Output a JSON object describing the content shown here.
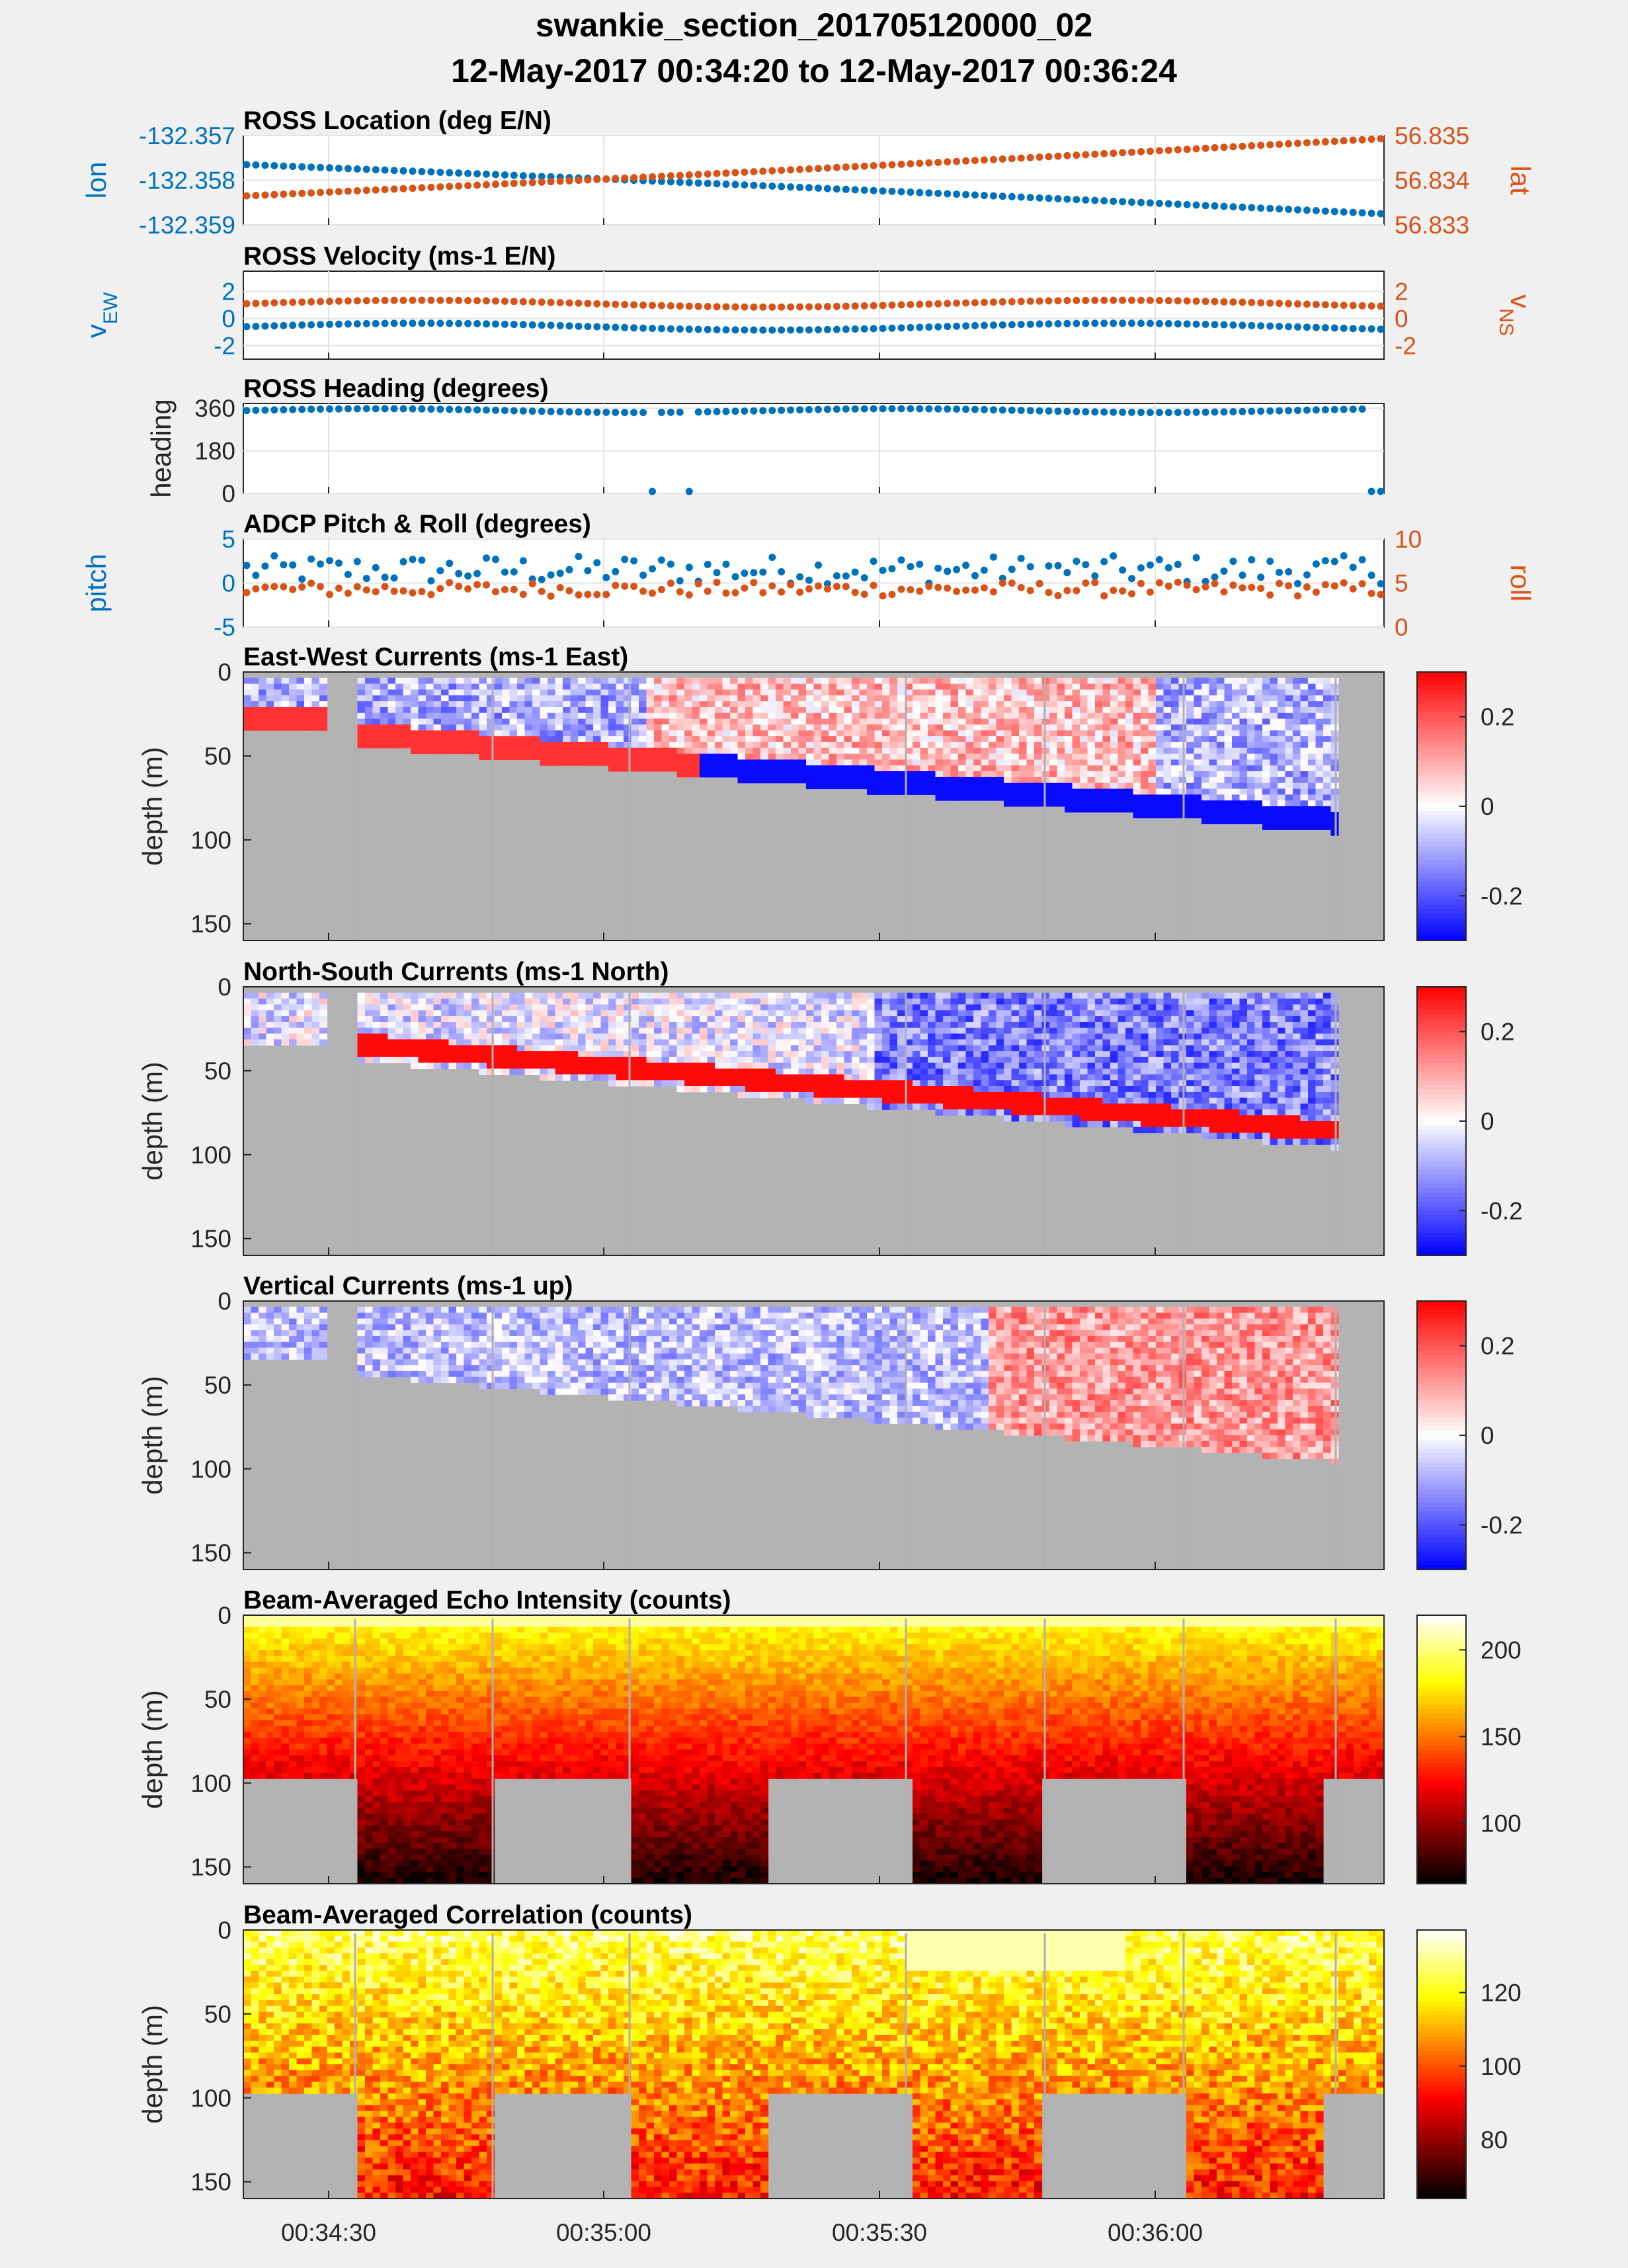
{
  "figure": {
    "title_line1": "swankie_section_201705120000_02",
    "title_line2": "12-May-2017 00:34:20 to 12-May-2017 00:36:24"
  },
  "colors": {
    "left_axis": "#0072bd",
    "right_axis": "#d95319",
    "background": "#f0f0f0",
    "bottom_fill": "#b3b3b3"
  },
  "chart_data": [
    {
      "type": "scatter",
      "title": "ROSS Location (deg E/N)",
      "ylabel_left": "lon",
      "ylabel_right": "lat",
      "ylim_left": [
        -132.359,
        -132.357
      ],
      "ylim_right": [
        56.833,
        56.835
      ],
      "yticks_left": [
        "-132.357",
        "-132.358",
        "-132.359"
      ],
      "yticks_right": [
        "56.835",
        "56.834",
        "56.833"
      ],
      "series": [
        {
          "name": "lon",
          "axis": "left",
          "start": -132.35765,
          "end": -132.35875
        },
        {
          "name": "lat",
          "axis": "right",
          "start": 56.83365,
          "end": 56.83493
        }
      ]
    },
    {
      "type": "scatter",
      "title": "ROSS Velocity (ms-1 E/N)",
      "ylabel_left": "vEW",
      "ylabel_right": "vNS",
      "ylim_left": [
        -3,
        3.5
      ],
      "ylim_right": [
        -3,
        3.5
      ],
      "yticks_left": [
        "2",
        "0",
        "-2"
      ],
      "yticks_right": [
        "2",
        "0",
        "-2"
      ],
      "series": [
        {
          "name": "vEW",
          "axis": "left",
          "mean": -0.6
        },
        {
          "name": "vNS",
          "axis": "right",
          "mean": 1.1
        }
      ]
    },
    {
      "type": "scatter",
      "title": "ROSS Heading (degrees)",
      "ylabel_left": "heading",
      "ylim_left": [
        0,
        380
      ],
      "yticks_left": [
        "360",
        "180",
        "0"
      ],
      "series": [
        {
          "name": "heading",
          "axis": "left",
          "mean": 350
        }
      ]
    },
    {
      "type": "scatter",
      "title": "ADCP Pitch & Roll (degrees)",
      "ylabel_left": "pitch",
      "ylabel_right": "roll",
      "ylim_left": [
        -5,
        5
      ],
      "ylim_right": [
        0,
        10
      ],
      "yticks_left": [
        "5",
        "0",
        "-5"
      ],
      "yticks_right": [
        "10",
        "5",
        "0"
      ],
      "series": [
        {
          "name": "pitch",
          "axis": "left",
          "mean": 1.5
        },
        {
          "name": "roll",
          "axis": "right",
          "mean": 4.3
        }
      ]
    },
    {
      "type": "heatmap",
      "title": "East-West Currents (ms-1 East)",
      "ylabel": "depth (m)",
      "ylim": [
        0,
        160
      ],
      "yticks": [
        "0",
        "50",
        "100",
        "150"
      ],
      "colormap": "blue-white-red",
      "clim": [
        -0.3,
        0.3
      ],
      "cbticks": [
        "0.2",
        "0",
        "-0.2"
      ]
    },
    {
      "type": "heatmap",
      "title": "North-South Currents (ms-1 North)",
      "ylabel": "depth (m)",
      "ylim": [
        0,
        160
      ],
      "yticks": [
        "0",
        "50",
        "100",
        "150"
      ],
      "colormap": "blue-white-red",
      "clim": [
        -0.3,
        0.3
      ],
      "cbticks": [
        "0.2",
        "0",
        "-0.2"
      ]
    },
    {
      "type": "heatmap",
      "title": "Vertical Currents (ms-1 up)",
      "ylabel": "depth (m)",
      "ylim": [
        0,
        160
      ],
      "yticks": [
        "0",
        "50",
        "100",
        "150"
      ],
      "colormap": "blue-white-red",
      "clim": [
        -0.3,
        0.3
      ],
      "cbticks": [
        "0.2",
        "0",
        "-0.2"
      ]
    },
    {
      "type": "heatmap",
      "title": "Beam-Averaged Echo Intensity (counts)",
      "ylabel": "depth (m)",
      "ylim": [
        0,
        160
      ],
      "yticks": [
        "0",
        "50",
        "100",
        "150"
      ],
      "colormap": "hot",
      "clim": [
        65,
        220
      ],
      "cbticks": [
        "200",
        "150",
        "100"
      ]
    },
    {
      "type": "heatmap",
      "title": "Beam-Averaged Correlation (counts)",
      "ylabel": "depth (m)",
      "ylim": [
        0,
        160
      ],
      "yticks": [
        "0",
        "50",
        "100",
        "150"
      ],
      "colormap": "hot",
      "clim": [
        64,
        137
      ],
      "cbticks": [
        "120",
        "100",
        "80"
      ]
    }
  ],
  "x_axis": {
    "ticks": [
      "00:34:30",
      "00:35:00",
      "00:35:30",
      "00:36:00"
    ]
  }
}
